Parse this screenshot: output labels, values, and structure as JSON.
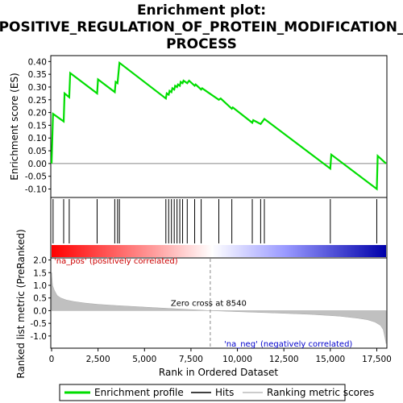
{
  "chart_data": {
    "type": "line",
    "title_line1": "Enrichment plot:",
    "title_line2": "POSITIVE_REGULATION_OF_PROTEIN_MODIFICATION_",
    "title_line3": "PROCESS",
    "top_panel": {
      "ylabel": "Enrichment score (ES)",
      "ylim": [
        -0.13,
        0.42
      ],
      "yticks": [
        -0.1,
        -0.05,
        0.0,
        0.05,
        0.1,
        0.15,
        0.2,
        0.25,
        0.3,
        0.35,
        0.4
      ],
      "ytick_labels": [
        "-0.10",
        "-0.05",
        "0.00",
        "0.05",
        "0.10",
        "0.15",
        "0.20",
        "0.25",
        "0.30",
        "0.35",
        "0.40"
      ],
      "series": [
        {
          "name": "Enrichment profile",
          "color": "#00dd00",
          "x": [
            0,
            80,
            650,
            700,
            950,
            1000,
            2450,
            2500,
            3400,
            3450,
            3550,
            3600,
            3650,
            6150,
            6200,
            6300,
            6350,
            6450,
            6500,
            6600,
            6650,
            6750,
            6800,
            6900,
            6950,
            7050,
            7100,
            7300,
            7400,
            7700,
            7750,
            8050,
            8100,
            8400,
            9000,
            9100,
            9700,
            9750,
            10800,
            10850,
            11250,
            11350,
            11450,
            15000,
            15050,
            17500,
            17550,
            18000
          ],
          "y": [
            0.0,
            0.195,
            0.165,
            0.275,
            0.26,
            0.355,
            0.275,
            0.33,
            0.28,
            0.32,
            0.315,
            0.355,
            0.395,
            0.255,
            0.275,
            0.27,
            0.285,
            0.28,
            0.295,
            0.29,
            0.305,
            0.3,
            0.31,
            0.305,
            0.32,
            0.315,
            0.325,
            0.315,
            0.325,
            0.305,
            0.31,
            0.29,
            0.295,
            0.28,
            0.25,
            0.255,
            0.215,
            0.22,
            0.16,
            0.17,
            0.155,
            0.165,
            0.175,
            -0.02,
            0.035,
            -0.1,
            0.03,
            0.0
          ]
        }
      ],
      "hits": [
        80,
        650,
        950,
        2450,
        3400,
        3550,
        3650,
        6150,
        6300,
        6450,
        6600,
        6750,
        6900,
        7050,
        7300,
        7700,
        8050,
        9000,
        9700,
        10800,
        11250,
        11450,
        15000,
        17500
      ]
    },
    "middle_panel": {
      "gradient_colors": [
        "#ff0000",
        "#ff9999",
        "#ffffff",
        "#9999ff",
        "#0000aa"
      ]
    },
    "bottom_panel": {
      "ylabel": "Ranked list metric (PreRanked)",
      "xlabel": "Rank in Ordered Dataset",
      "xlim": [
        0,
        18000
      ],
      "xticks": [
        0,
        2500,
        5000,
        7500,
        10000,
        12500,
        15000,
        17500
      ],
      "xtick_labels": [
        "0",
        "2,500",
        "5,000",
        "7,500",
        "10,000",
        "12,500",
        "15,000",
        "17,500"
      ],
      "ylim": [
        -1.45,
        2.05
      ],
      "yticks": [
        -1.0,
        -0.5,
        0.0,
        0.5,
        1.0,
        1.5,
        2.0
      ],
      "ytick_labels": [
        "-1.0",
        "-0.5",
        "0.0",
        "0.5",
        "1.0",
        "1.5",
        "2.0"
      ],
      "metric_x": [
        0,
        50,
        150,
        300,
        500,
        800,
        1200,
        1800,
        2500,
        3500,
        5000,
        6500,
        8540,
        10000,
        12000,
        14000,
        15500,
        16500,
        17000,
        17400,
        17700,
        17850,
        17950,
        18000
      ],
      "metric_y": [
        1.5,
        1.0,
        0.8,
        0.6,
        0.5,
        0.42,
        0.36,
        0.3,
        0.25,
        0.2,
        0.14,
        0.08,
        0.0,
        -0.04,
        -0.09,
        -0.15,
        -0.22,
        -0.3,
        -0.36,
        -0.45,
        -0.58,
        -0.75,
        -1.1,
        -1.3
      ],
      "zero_cross_x": 8540,
      "zero_cross_label": "Zero cross at 8540",
      "pos_label": "'na_pos' (positively correlated)",
      "neg_label": "'na_neg' (negatively correlated)",
      "pos_color": "#cc0000",
      "neg_color": "#0000cc"
    },
    "legend": [
      {
        "label": "Enrichment profile",
        "color": "#00dd00",
        "kind": "thick-line"
      },
      {
        "label": "Hits",
        "color": "#000000",
        "kind": "line"
      },
      {
        "label": "Ranking metric scores",
        "color": "#bbbbbb",
        "kind": "line"
      }
    ]
  }
}
